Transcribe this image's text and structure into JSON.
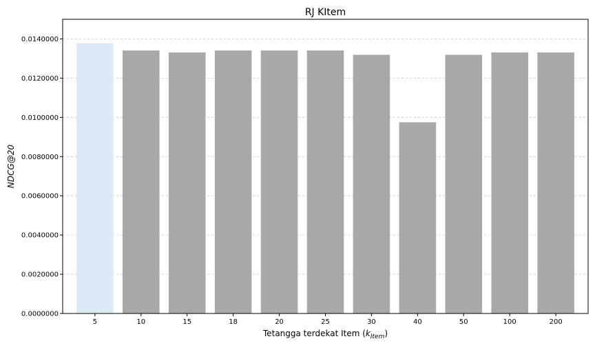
{
  "chart_data": {
    "type": "bar",
    "title": "RJ KItem",
    "xlabel_prefix": "Tetangga terdekat Item (",
    "xlabel_var": "k",
    "xlabel_sub": "Item",
    "xlabel_suffix": ")",
    "ylabel": "NDCG@20",
    "categories": [
      "5",
      "10",
      "15",
      "18",
      "20",
      "25",
      "30",
      "40",
      "50",
      "100",
      "200"
    ],
    "values": [
      0.01378,
      0.01341,
      0.01331,
      0.01341,
      0.01341,
      0.01341,
      0.01319,
      0.00975,
      0.01319,
      0.01331,
      0.01331
    ],
    "ylim": [
      0,
      0.015
    ],
    "yticks": [
      0.0,
      0.002,
      0.004,
      0.006,
      0.008,
      0.01,
      0.012,
      0.014
    ],
    "ytick_labels": [
      "0.0000000",
      "0.0020000",
      "0.0040000",
      "0.0060000",
      "0.0080000",
      "0.0100000",
      "0.0120000",
      "0.0140000"
    ],
    "grid": "y-dashed",
    "colors": {
      "highlight_bar": "#dce8f5",
      "bar": "#a8a8a8",
      "grid": "#c8c8c8",
      "axis": "#000000"
    },
    "highlight_index": 0
  }
}
